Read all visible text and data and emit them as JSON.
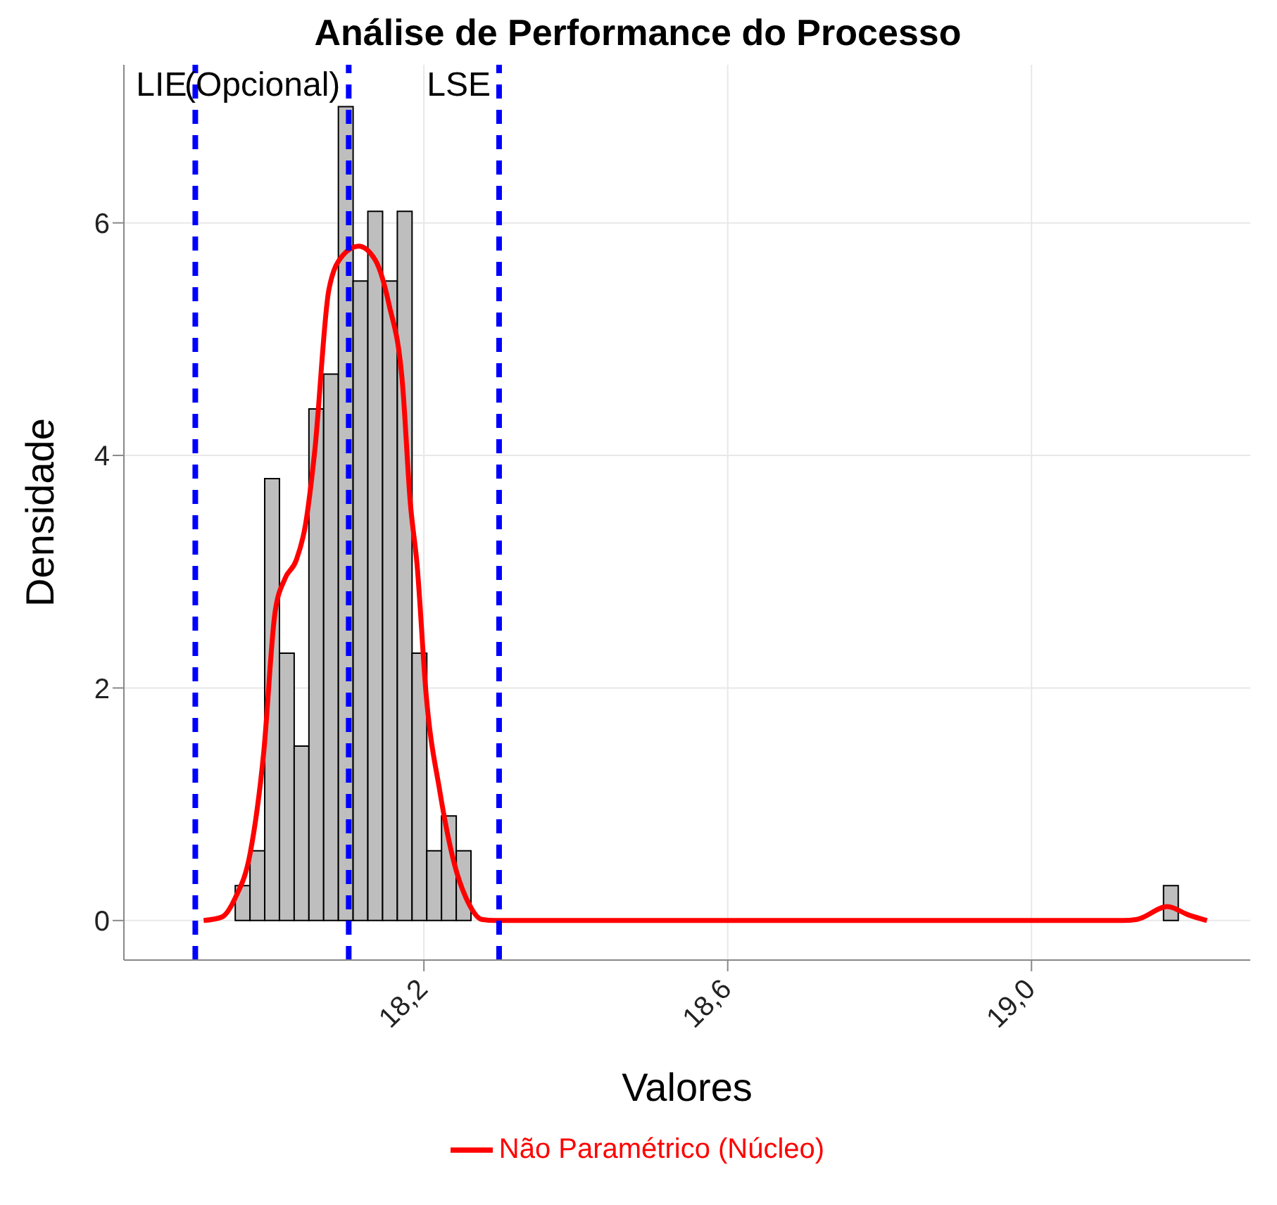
{
  "chart_data": {
    "type": "histogram",
    "title": "Análise de Performance do Processo",
    "xlabel": "Valores",
    "ylabel": "Densidade",
    "xlim": [
      17.805,
      19.288
    ],
    "ylim": [
      -0.34,
      7.36
    ],
    "xticks": [
      {
        "value": 18.2,
        "label": "18,2"
      },
      {
        "value": 18.6,
        "label": "18,6"
      },
      {
        "value": 19.0,
        "label": "19,0"
      }
    ],
    "yticks": [
      0,
      2,
      4,
      6
    ],
    "grid": true,
    "legend": "bottom",
    "series": [
      {
        "color": "#bebebe",
        "bins": [
          17.874,
          17.8934,
          17.9128,
          17.9322,
          17.9516,
          17.971,
          17.9904,
          18.0098,
          18.0292,
          18.0486,
          18.068,
          18.0874,
          18.1068,
          18.1262,
          18.1456,
          18.165,
          18.1844,
          18.2038,
          18.2232,
          18.2426,
          18.262,
          18.2814,
          18.3008,
          18.3202,
          18.3396,
          18.359,
          18.3784,
          18.3978,
          18.4172,
          18.4366,
          18.456,
          18.4754,
          18.4948,
          18.5142,
          18.5336,
          18.553,
          18.5724,
          18.5918,
          18.6112,
          18.6306,
          18.65,
          18.6694,
          18.6888,
          18.7082,
          18.7276,
          18.747,
          18.7664,
          18.7858,
          18.8052,
          18.8246,
          18.844,
          18.8634,
          18.8828,
          18.9022,
          18.9216,
          18.941,
          18.9604,
          18.9798,
          18.9992,
          19.0186,
          19.038,
          19.0574,
          19.0768,
          19.0962,
          19.1156,
          19.135,
          19.1544,
          19.1738,
          19.1932,
          19.2126,
          19.232,
          19.2514,
          19.2708
        ],
        "values": [
          0,
          0,
          0,
          0,
          0.3,
          0.6,
          3.8,
          2.3,
          1.5,
          4.4,
          4.7,
          7.0,
          5.5,
          6.1,
          5.5,
          6.1,
          2.3,
          0.6,
          0.9,
          0.6,
          0,
          0,
          0,
          0,
          0,
          0,
          0,
          0,
          0,
          0,
          0,
          0,
          0,
          0,
          0,
          0,
          0,
          0,
          0,
          0,
          0,
          0,
          0,
          0,
          0,
          0,
          0,
          0,
          0,
          0,
          0,
          0,
          0,
          0,
          0,
          0,
          0,
          0,
          0,
          0,
          0,
          0,
          0,
          0,
          0,
          0,
          0,
          0.3,
          0,
          0,
          0,
          0
        ]
      },
      {
        "type": "line",
        "name": "Não Paramétrico (Núcleo)",
        "color": "#ff0000",
        "x": [
          17.91,
          17.934,
          17.952,
          17.971,
          17.989,
          18.004,
          18.017,
          18.032,
          18.044,
          18.056,
          18.075,
          18.093,
          18.114,
          18.136,
          18.154,
          18.172,
          18.182,
          18.191,
          18.203,
          18.221,
          18.24,
          18.258,
          18.276,
          18.295,
          19.12,
          19.139,
          19.179,
          19.206,
          19.231
        ],
        "values": [
          0,
          0.03,
          0.2,
          0.57,
          1.44,
          2.65,
          2.94,
          3.1,
          3.4,
          4.02,
          5.43,
          5.72,
          5.8,
          5.68,
          5.3,
          4.6,
          3.6,
          3.06,
          1.94,
          1.11,
          0.49,
          0.16,
          0.01,
          0,
          0,
          0.01,
          0.12,
          0.05,
          0
        ]
      }
    ],
    "ref_lines": [
      {
        "axis": "x",
        "value": 17.899,
        "label": "LIE",
        "color": "#0000ff",
        "line_style": "dashed"
      },
      {
        "axis": "x",
        "value": 18.101,
        "label": "(Opcional)",
        "color": "#0000ff",
        "line_style": "dashed"
      },
      {
        "axis": "x",
        "value": 18.299,
        "label": "LSE",
        "color": "#0000ff",
        "line_style": "dashed"
      }
    ]
  }
}
